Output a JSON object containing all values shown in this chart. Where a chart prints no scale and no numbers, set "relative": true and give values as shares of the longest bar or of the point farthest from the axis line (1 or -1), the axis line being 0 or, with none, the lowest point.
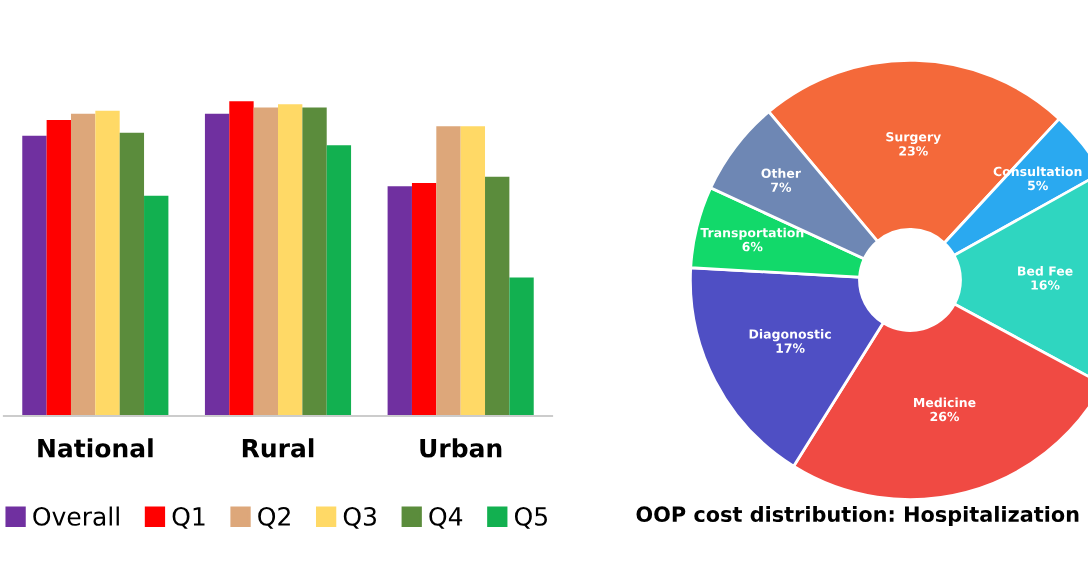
{
  "chart_data": [
    {
      "type": "bar",
      "categories": [
        "National",
        "Rural",
        "Urban"
      ],
      "relative": true,
      "legend": "bottom",
      "grid": false,
      "series": [
        {
          "name": "Overall",
          "color": "#7030a0",
          "values": [
            0.89,
            0.96,
            0.73
          ]
        },
        {
          "name": "Q1",
          "color": "#ff0000",
          "values": [
            0.94,
            1.0,
            0.74
          ]
        },
        {
          "name": "Q2",
          "color": "#dda77a",
          "values": [
            0.96,
            0.98,
            0.92
          ]
        },
        {
          "name": "Q3",
          "color": "#ffd966",
          "values": [
            0.97,
            0.99,
            0.92
          ]
        },
        {
          "name": "Q4",
          "color": "#5b8c3c",
          "values": [
            0.9,
            0.98,
            0.76
          ]
        },
        {
          "name": "Q5",
          "color": "#12b050",
          "values": [
            0.7,
            0.86,
            0.44
          ]
        }
      ]
    },
    {
      "type": "donut",
      "title": "OOP cost distribution: Hospitalization",
      "value_labels": [
        "23%",
        "5%",
        "16%",
        "26%",
        "17%",
        "6%",
        "7%"
      ],
      "categories": [
        "Surgery",
        "Consultation",
        "Bed Fee",
        "Medicine",
        "Diagonostic",
        "Transportation",
        "Other"
      ],
      "values": [
        23,
        5,
        16,
        26,
        17,
        6,
        7
      ],
      "colors": [
        "#f4693a",
        "#2aa9f0",
        "#2fd6c0",
        "#f04a43",
        "#4f4fc4",
        "#12d96a",
        "#6e87b4"
      ]
    }
  ]
}
